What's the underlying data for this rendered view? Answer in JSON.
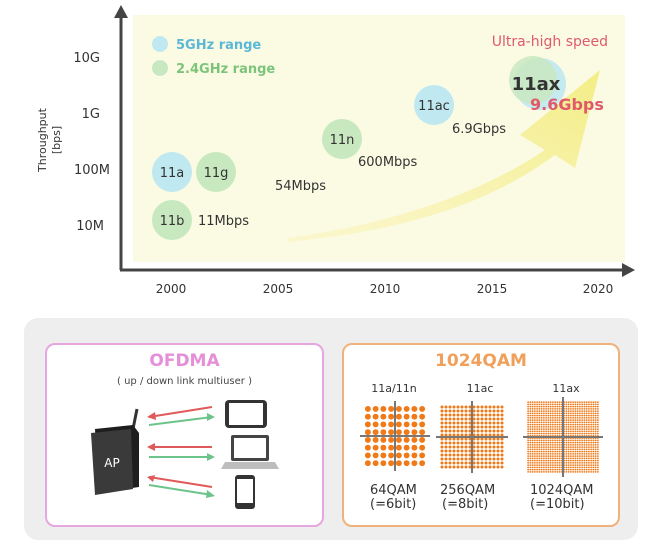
{
  "chart": {
    "ylabel_line1": "Throughput",
    "ylabel_line2": "[bps]",
    "y_ticks": [
      "10G",
      "1G",
      "100M",
      "10M"
    ],
    "x_ticks": [
      "2000",
      "2005",
      "2010",
      "2015",
      "2020"
    ],
    "legend": [
      {
        "label": "5GHz range",
        "color": "#5bb8d6",
        "fill": "#bfe8f0"
      },
      {
        "label": "2.4GHz range",
        "color": "#7cc47a",
        "fill": "#c8e8c0"
      }
    ],
    "headline": "Ultra-high speed",
    "headline_color": "#e05a6a",
    "standards": [
      {
        "name": "11a",
        "band": "5GHz",
        "year": 2000,
        "level": "100M"
      },
      {
        "name": "11g",
        "band": "2.4GHz",
        "year": 2002,
        "level": "100M"
      },
      {
        "name": "11b",
        "band": "2.4GHz",
        "year": 2000,
        "level": "10M"
      },
      {
        "name": "11n",
        "band": "2.4GHz",
        "year": 2008,
        "level": "1G"
      },
      {
        "name": "11ac",
        "band": "5GHz",
        "year": 2012,
        "level": "1G"
      },
      {
        "name": "11ax",
        "band": "both",
        "year": 2017,
        "level": "10G"
      }
    ],
    "speeds": [
      "11Mbps",
      "54Mbps",
      "600Mbps",
      "6.9Gbps",
      "9.6Gbps"
    ]
  },
  "ofdma": {
    "title": "OFDMA",
    "subtitle": "( up / down link multiuser )",
    "ap_label": "AP",
    "arrow_red": "#e05a5a",
    "arrow_green": "#6cc48a"
  },
  "qam": {
    "title": "1024QAM",
    "columns": [
      {
        "header": "11a/11n",
        "line1": "64QAM",
        "line2": "(=6bit)",
        "grid": 8
      },
      {
        "header": "11ac",
        "line1": "256QAM",
        "line2": "(=8bit)",
        "grid": 16
      },
      {
        "header": "11ax",
        "line1": "1024QAM",
        "line2": "(=10bit)",
        "grid": 32
      }
    ],
    "dot_color": "#f07a1a"
  }
}
